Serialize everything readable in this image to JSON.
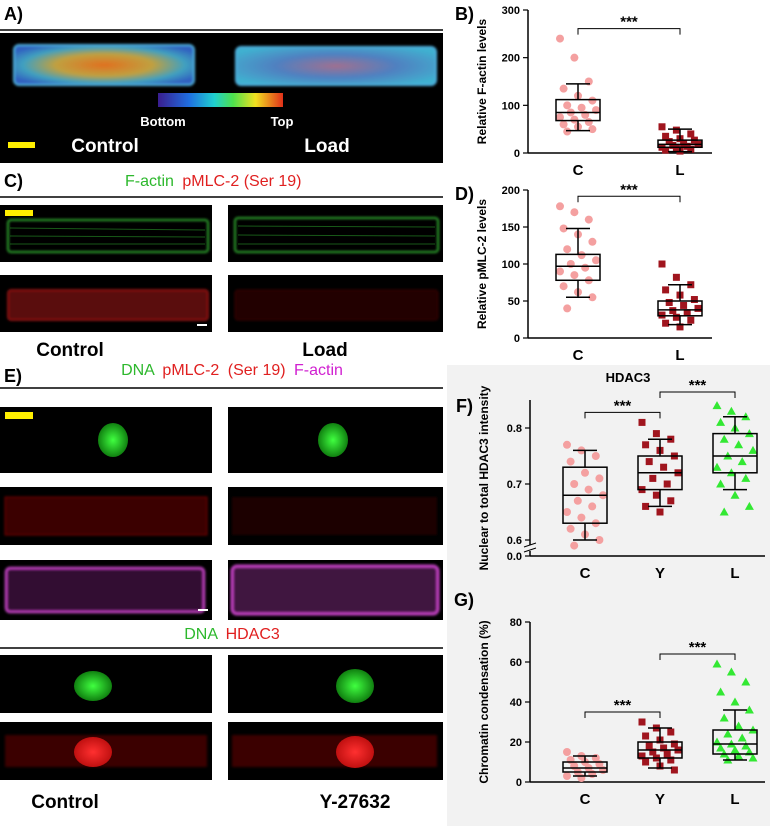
{
  "panels": {
    "A": {
      "label": "A)",
      "colorbar_low": "Bottom",
      "colorbar_high": "Top",
      "conditions": [
        "Control",
        "Load"
      ]
    },
    "C": {
      "label": "C)",
      "title": [
        "F-actin",
        "pMLC-2 (Ser 19)"
      ],
      "conditions": [
        "Control",
        "Load"
      ]
    },
    "E": {
      "label": "E)",
      "title_top": [
        "DNA",
        "pMLC-2",
        "(Ser 19)",
        "F-actin"
      ],
      "title_bottom": [
        "DNA",
        "HDAC3"
      ],
      "conditions": [
        "Control",
        "Y-27632"
      ]
    }
  },
  "chart_data": [
    {
      "type": "box",
      "panel_label": "B)",
      "ylabel": "Relative F-actin levels",
      "categories": [
        "C",
        "L"
      ],
      "ylim": [
        0,
        300
      ],
      "yticks": [
        0,
        100,
        200,
        300
      ],
      "groups": [
        {
          "color": "#f4a0a0",
          "marker": "circle",
          "whisker_low": 47,
          "q1": 68,
          "median": 85,
          "q3": 112,
          "whisker_high": 145,
          "points": [
            240,
            200,
            150,
            135,
            120,
            110,
            100,
            95,
            90,
            85,
            80,
            75,
            70,
            65,
            60,
            55,
            50,
            45
          ]
        },
        {
          "color": "#a0151e",
          "marker": "square",
          "whisker_low": 3,
          "q1": 12,
          "median": 18,
          "q3": 27,
          "whisker_high": 50,
          "points": [
            55,
            48,
            40,
            35,
            30,
            27,
            24,
            20,
            18,
            16,
            14,
            12,
            10,
            8,
            6,
            4
          ]
        }
      ],
      "brackets": [
        {
          "groups": [
            0,
            1
          ],
          "label": "***"
        }
      ]
    },
    {
      "type": "box",
      "panel_label": "D)",
      "ylabel": "Relative pMLC-2 levels",
      "categories": [
        "C",
        "L"
      ],
      "ylim": [
        0,
        200
      ],
      "yticks": [
        0,
        50,
        100,
        150,
        200
      ],
      "groups": [
        {
          "color": "#f4a0a0",
          "marker": "circle",
          "whisker_low": 55,
          "q1": 78,
          "median": 97,
          "q3": 113,
          "whisker_high": 148,
          "points": [
            178,
            170,
            160,
            148,
            140,
            130,
            120,
            112,
            105,
            100,
            95,
            90,
            85,
            78,
            70,
            62,
            55,
            40
          ]
        },
        {
          "color": "#a0151e",
          "marker": "square",
          "whisker_low": 18,
          "q1": 30,
          "median": 38,
          "q3": 50,
          "whisker_high": 72,
          "points": [
            100,
            82,
            72,
            65,
            58,
            52,
            48,
            44,
            40,
            37,
            34,
            31,
            28,
            24,
            20,
            15
          ]
        }
      ],
      "brackets": [
        {
          "groups": [
            0,
            1
          ],
          "label": "***"
        }
      ]
    },
    {
      "type": "box",
      "panel_label": "F)",
      "title": "HDAC3",
      "ylabel": "Nuclear to total HDAC3 intensity",
      "categories": [
        "C",
        "Y",
        "L"
      ],
      "ylim": [
        0,
        0.85
      ],
      "axis_break": true,
      "yticks": [
        {
          "value": 0,
          "label": "0.0"
        },
        0.6,
        0.7,
        0.8
      ],
      "groups": [
        {
          "color": "#f4a0a0",
          "marker": "circle",
          "whisker_low": 0.6,
          "q1": 0.63,
          "median": 0.68,
          "q3": 0.73,
          "whisker_high": 0.76,
          "points": [
            0.77,
            0.76,
            0.75,
            0.74,
            0.72,
            0.71,
            0.7,
            0.69,
            0.68,
            0.67,
            0.66,
            0.65,
            0.64,
            0.63,
            0.62,
            0.61,
            0.6,
            0.59
          ]
        },
        {
          "color": "#a0151e",
          "marker": "square",
          "whisker_low": 0.66,
          "q1": 0.69,
          "median": 0.72,
          "q3": 0.75,
          "whisker_high": 0.78,
          "points": [
            0.81,
            0.79,
            0.78,
            0.77,
            0.76,
            0.75,
            0.74,
            0.73,
            0.72,
            0.71,
            0.7,
            0.69,
            0.68,
            0.67,
            0.66,
            0.65
          ]
        },
        {
          "color": "#33e833",
          "marker": "triangle",
          "whisker_low": 0.69,
          "q1": 0.72,
          "median": 0.75,
          "q3": 0.79,
          "whisker_high": 0.82,
          "points": [
            0.84,
            0.83,
            0.82,
            0.81,
            0.8,
            0.79,
            0.78,
            0.77,
            0.76,
            0.75,
            0.74,
            0.73,
            0.72,
            0.71,
            0.7,
            0.68,
            0.66,
            0.65
          ]
        }
      ],
      "brackets": [
        {
          "groups": [
            0,
            1
          ],
          "label": "***"
        },
        {
          "groups": [
            1,
            2
          ],
          "label": "***"
        }
      ]
    },
    {
      "type": "box",
      "panel_label": "G)",
      "ylabel": "Chromatin condensation (%)",
      "categories": [
        "C",
        "Y",
        "L"
      ],
      "ylim": [
        0,
        80
      ],
      "yticks": [
        0,
        20,
        40,
        60,
        80
      ],
      "groups": [
        {
          "color": "#f4a0a0",
          "marker": "circle",
          "whisker_low": 3,
          "q1": 5,
          "median": 7,
          "q3": 10,
          "whisker_high": 13,
          "points": [
            15,
            13,
            12,
            11,
            10,
            9,
            8,
            7,
            6,
            5,
            4,
            3,
            2
          ]
        },
        {
          "color": "#a0151e",
          "marker": "square",
          "whisker_low": 7,
          "q1": 12,
          "median": 16,
          "q3": 20,
          "whisker_high": 27,
          "points": [
            30,
            27,
            25,
            23,
            21,
            19,
            18,
            17,
            16,
            15,
            14,
            13,
            12,
            11,
            10,
            8,
            6
          ]
        },
        {
          "color": "#33e833",
          "marker": "triangle",
          "whisker_low": 11,
          "q1": 14,
          "median": 19,
          "q3": 26,
          "whisker_high": 36,
          "points": [
            59,
            55,
            50,
            45,
            40,
            36,
            32,
            28,
            26,
            24,
            22,
            20,
            19,
            18,
            17,
            16,
            15,
            14,
            13,
            12,
            11
          ]
        }
      ],
      "brackets": [
        {
          "groups": [
            0,
            1
          ],
          "label": "***"
        },
        {
          "groups": [
            1,
            2
          ],
          "label": "***"
        }
      ]
    }
  ]
}
